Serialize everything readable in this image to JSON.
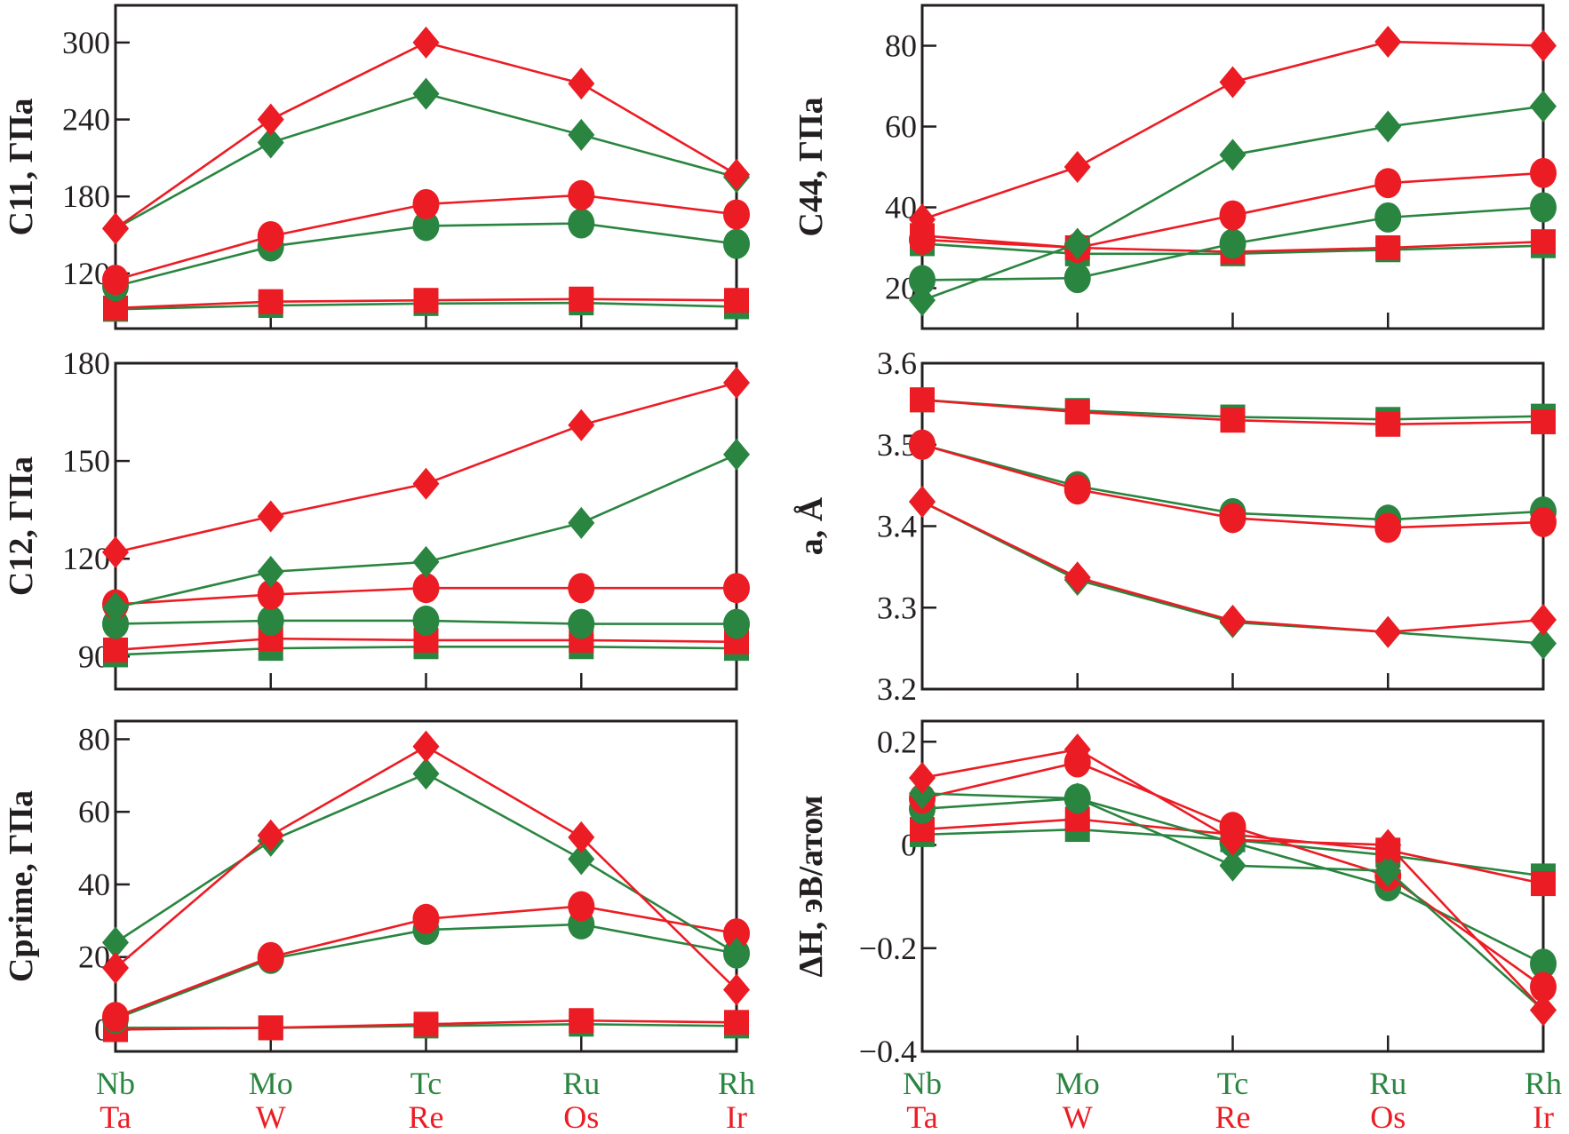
{
  "chart_data": {
    "categories_top": [
      "Nb",
      "Mo",
      "Tc",
      "Ru",
      "Rh"
    ],
    "categories_bottom": [
      "Ta",
      "W",
      "Re",
      "Os",
      "Ir"
    ],
    "colors": {
      "green": "#2a8540",
      "red": "#ec1c24"
    },
    "panels": [
      {
        "type": "line",
        "ylabel": "C11, ГПа",
        "ylabel_parts": [
          {
            "t": "C",
            "i": true
          },
          {
            "t": "11",
            "sub": true
          },
          {
            "t": ", ГПа"
          }
        ],
        "ylim": [
          77,
          329
        ],
        "yticks": [
          120,
          180,
          240,
          300
        ],
        "ytick_labels": [
          "120",
          "180",
          "240",
          "300"
        ],
        "series": [
          {
            "color": "#2a8540",
            "marker": "square",
            "values": [
              92,
              95,
              96.5,
              97,
              94
            ]
          },
          {
            "color": "#ec1c24",
            "marker": "square",
            "values": [
              93,
              98,
              99,
              100,
              99
            ]
          },
          {
            "color": "#2a8540",
            "marker": "circle",
            "values": [
              110,
              141,
              157,
              159,
              143
            ]
          },
          {
            "color": "#ec1c24",
            "marker": "circle",
            "values": [
              115,
              149,
              174,
              181,
              166
            ]
          },
          {
            "color": "#2a8540",
            "marker": "diamond",
            "values": [
              155,
              222,
              260,
              228,
              195
            ]
          },
          {
            "color": "#ec1c24",
            "marker": "diamond",
            "values": [
              155,
              240,
              300,
              268,
              197
            ]
          }
        ]
      },
      {
        "type": "line",
        "ylabel": "C44, ГПа",
        "ylabel_parts": [
          {
            "t": "C",
            "i": true
          },
          {
            "t": "44",
            "sub": true
          },
          {
            "t": ", ГПа"
          }
        ],
        "ylim": [
          10,
          90
        ],
        "yticks": [
          20,
          40,
          60,
          80
        ],
        "ytick_labels": [
          "20",
          "40",
          "60",
          "80"
        ],
        "series": [
          {
            "color": "#2a8540",
            "marker": "square",
            "values": [
              31,
              28.5,
              28.5,
              29.5,
              30.5
            ]
          },
          {
            "color": "#ec1c24",
            "marker": "square",
            "values": [
              33,
              30,
              29,
              30,
              31.5
            ]
          },
          {
            "color": "#2a8540",
            "marker": "circle",
            "values": [
              22,
              22.5,
              31,
              37.5,
              40
            ]
          },
          {
            "color": "#ec1c24",
            "marker": "circle",
            "values": [
              32,
              30,
              38,
              46,
              48.5
            ]
          },
          {
            "color": "#2a8540",
            "marker": "diamond",
            "values": [
              17,
              31,
              53,
              60,
              65
            ]
          },
          {
            "color": "#ec1c24",
            "marker": "diamond",
            "values": [
              37,
              50,
              71,
              81,
              80
            ]
          }
        ]
      },
      {
        "type": "line",
        "ylabel": "C12, ГПа",
        "ylabel_parts": [
          {
            "t": "C",
            "i": true
          },
          {
            "t": "12",
            "sub": true
          },
          {
            "t": ", ГПа"
          }
        ],
        "ylim": [
          80,
          180
        ],
        "yticks": [
          90,
          120,
          150,
          180
        ],
        "ytick_labels": [
          "90",
          "120",
          "150",
          "180"
        ],
        "series": [
          {
            "color": "#2a8540",
            "marker": "square",
            "values": [
              90.5,
              92.5,
              93,
              93,
              92.5
            ]
          },
          {
            "color": "#ec1c24",
            "marker": "square",
            "values": [
              92,
              95.5,
              95,
              95,
              94.5
            ]
          },
          {
            "color": "#2a8540",
            "marker": "circle",
            "values": [
              100,
              101,
              101,
              100,
              100
            ]
          },
          {
            "color": "#ec1c24",
            "marker": "circle",
            "values": [
              106,
              109,
              111,
              111,
              111
            ]
          },
          {
            "color": "#2a8540",
            "marker": "diamond",
            "values": [
              105,
              116,
              119,
              131,
              152
            ]
          },
          {
            "color": "#ec1c24",
            "marker": "diamond",
            "values": [
              122,
              133,
              143,
              161,
              174
            ]
          }
        ]
      },
      {
        "type": "line",
        "ylabel": "a, Å",
        "ylabel_parts": [
          {
            "t": "a",
            "i": true
          },
          {
            "t": ", Å"
          }
        ],
        "ylim": [
          3.2,
          3.6
        ],
        "yticks": [
          3.2,
          3.3,
          3.4,
          3.5,
          3.6
        ],
        "ytick_labels": [
          "3.2",
          "3.3",
          "3.4",
          "3.5",
          "3.6"
        ],
        "series": [
          {
            "color": "#2a8540",
            "marker": "square",
            "values": [
              3.555,
              3.542,
              3.534,
              3.531,
              3.535
            ]
          },
          {
            "color": "#ec1c24",
            "marker": "square",
            "values": [
              3.555,
              3.54,
              3.53,
              3.525,
              3.528
            ]
          },
          {
            "color": "#2a8540",
            "marker": "circle",
            "values": [
              3.5,
              3.449,
              3.416,
              3.408,
              3.418
            ]
          },
          {
            "color": "#ec1c24",
            "marker": "circle",
            "values": [
              3.5,
              3.445,
              3.41,
              3.398,
              3.405
            ]
          },
          {
            "color": "#2a8540",
            "marker": "diamond",
            "values": [
              3.43,
              3.334,
              3.282,
              3.27,
              3.256
            ]
          },
          {
            "color": "#ec1c24",
            "marker": "diamond",
            "values": [
              3.43,
              3.337,
              3.284,
              3.27,
              3.285
            ]
          }
        ]
      },
      {
        "type": "line",
        "ylabel": "Cprime, ГПа",
        "ylabel_parts": [
          {
            "t": "Cprime, ГПа"
          }
        ],
        "ylim": [
          -6,
          85
        ],
        "yticks": [
          0,
          20,
          40,
          60,
          80
        ],
        "ytick_labels": [
          "0",
          "20",
          "40",
          "60",
          "80"
        ],
        "series": [
          {
            "color": "#2a8540",
            "marker": "square",
            "values": [
              0.5,
              0.5,
              1,
              1.5,
              1
            ]
          },
          {
            "color": "#ec1c24",
            "marker": "square",
            "values": [
              0,
              0.5,
              1.5,
              2.5,
              2
            ]
          },
          {
            "color": "#2a8540",
            "marker": "circle",
            "values": [
              3,
              19.5,
              27.5,
              29,
              21
            ]
          },
          {
            "color": "#ec1c24",
            "marker": "circle",
            "values": [
              3.5,
              20,
              30.5,
              34,
              26.5
            ]
          },
          {
            "color": "#2a8540",
            "marker": "diamond",
            "values": [
              24,
              52,
              70.5,
              47,
              21
            ]
          },
          {
            "color": "#ec1c24",
            "marker": "diamond",
            "values": [
              17,
              53.5,
              78,
              53,
              11
            ]
          }
        ]
      },
      {
        "type": "line",
        "ylabel": "ΔH, эВ/атом",
        "ylabel_parts": [
          {
            "t": "Δ"
          },
          {
            "t": "H",
            "i": true
          },
          {
            "t": ", эВ/атом"
          }
        ],
        "ylim": [
          -0.4,
          0.24
        ],
        "yticks": [
          -0.4,
          -0.2,
          0,
          0.2
        ],
        "ytick_labels": [
          "−0.4",
          "−0.2",
          "0",
          "0.2"
        ],
        "series": [
          {
            "color": "#2a8540",
            "marker": "square",
            "values": [
              0.02,
              0.03,
              0.01,
              -0.02,
              -0.06
            ]
          },
          {
            "color": "#ec1c24",
            "marker": "square",
            "values": [
              0.03,
              0.05,
              0.02,
              -0.01,
              -0.075
            ]
          },
          {
            "color": "#2a8540",
            "marker": "circle",
            "values": [
              0.07,
              0.09,
              0.005,
              -0.08,
              -0.23
            ]
          },
          {
            "color": "#ec1c24",
            "marker": "circle",
            "values": [
              0.09,
              0.16,
              0.035,
              -0.06,
              -0.275
            ]
          },
          {
            "color": "#2a8540",
            "marker": "diamond",
            "values": [
              0.1,
              0.09,
              -0.04,
              -0.05,
              -0.32
            ]
          },
          {
            "color": "#ec1c24",
            "marker": "diamond",
            "values": [
              0.13,
              0.185,
              0.01,
              0.0,
              -0.32
            ]
          }
        ]
      }
    ]
  }
}
